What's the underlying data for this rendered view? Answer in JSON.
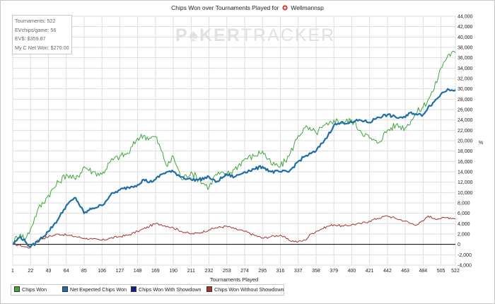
{
  "title_prefix": "Chips Won over Tournaments Played for",
  "player_name": "Wellmannsp",
  "watermark": {
    "part1": "P",
    "part2": "KER",
    "part3": "TRACKER"
  },
  "stats": {
    "tournaments": "Tournaments: 522",
    "ev_per_game": "EVchips/game: 56",
    "evs": "EV$: $359.87",
    "net_won": "My C Net Won: $270.00"
  },
  "legend": [
    {
      "label": "Chips Won",
      "color": "#3fa63f"
    },
    {
      "label": "Net Expected Chips Won",
      "color": "#1f6fa6"
    },
    {
      "label": "Chips Won With Showdown",
      "color": "#1a1a8c"
    },
    {
      "label": "Chips Won Without Showdown",
      "color": "#a83232"
    }
  ],
  "chart_data": {
    "type": "line",
    "title": "Chips Won over Tournaments Played for Wellmannsp",
    "xlabel": "Tournaments Played",
    "ylabel": "%",
    "xlim": [
      1,
      522
    ],
    "ylim": [
      -4000,
      44000
    ],
    "x_ticks": [
      1,
      22,
      43,
      64,
      85,
      106,
      127,
      148,
      169,
      190,
      211,
      232,
      253,
      274,
      295,
      316,
      337,
      358,
      379,
      400,
      421,
      442,
      463,
      484,
      505,
      522
    ],
    "y_ticks": [
      -4000,
      -2000,
      0,
      2000,
      4000,
      6000,
      8000,
      10000,
      12000,
      14000,
      16000,
      18000,
      20000,
      22000,
      24000,
      26000,
      28000,
      30000,
      32000,
      34000,
      36000,
      38000,
      40000,
      42000,
      44000
    ],
    "y_tick_labels": [
      "-4,000",
      "-2,000",
      "0",
      "2,000",
      "4,000",
      "6,000",
      "8,000",
      "10,000",
      "12,000",
      "14,000",
      "16,000",
      "18,000",
      "20,000",
      "22,000",
      "24,000",
      "26,000",
      "28,000",
      "30,000",
      "32,000",
      "34,000",
      "36,000",
      "38,000",
      "40,000",
      "42,000",
      "44,000"
    ],
    "x_tick_labels": [
      "1",
      "22",
      "43",
      "64",
      "85",
      "106",
      "127",
      "148",
      "169",
      "190",
      "211",
      "232",
      "253",
      "274",
      "295",
      "316",
      "337",
      "358",
      "379",
      "400",
      "421",
      "442",
      "463",
      "484",
      "505",
      "522"
    ],
    "series": [
      {
        "name": "Chips Won",
        "color": "#3fa63f",
        "width": 1,
        "x": [
          1,
          10,
          16,
          22,
          30,
          43,
          55,
          64,
          75,
          85,
          95,
          106,
          116,
          127,
          137,
          148,
          155,
          162,
          169,
          176,
          183,
          190,
          200,
          211,
          220,
          232,
          240,
          253,
          262,
          274,
          285,
          295,
          305,
          316,
          326,
          337,
          345,
          352,
          358,
          365,
          372,
          379,
          390,
          400,
          410,
          421,
          430,
          442,
          452,
          463,
          470,
          477,
          484,
          490,
          497,
          505,
          513,
          522
        ],
        "y": [
          500,
          2000,
          1000,
          3000,
          6500,
          9500,
          12000,
          13500,
          12500,
          15000,
          14000,
          13500,
          16000,
          17000,
          17500,
          20500,
          21000,
          20500,
          20800,
          18000,
          15000,
          17000,
          12500,
          14000,
          12500,
          11000,
          13500,
          13500,
          14500,
          16500,
          17000,
          18000,
          15500,
          15000,
          17000,
          21000,
          22500,
          22000,
          21500,
          22500,
          23000,
          24000,
          23500,
          24000,
          22000,
          20500,
          19500,
          22000,
          23000,
          22500,
          24000,
          25500,
          26500,
          28000,
          30000,
          34000,
          36500,
          37000
        ]
      },
      {
        "name": "Net Expected Chips Won",
        "color": "#1f6fa6",
        "width": 2.2,
        "x": [
          1,
          10,
          16,
          22,
          30,
          43,
          55,
          64,
          75,
          85,
          95,
          106,
          116,
          127,
          137,
          148,
          155,
          162,
          169,
          176,
          183,
          190,
          200,
          211,
          220,
          232,
          240,
          253,
          262,
          274,
          285,
          295,
          305,
          316,
          326,
          337,
          345,
          352,
          358,
          365,
          372,
          379,
          390,
          400,
          410,
          421,
          430,
          442,
          452,
          463,
          470,
          477,
          484,
          490,
          497,
          505,
          513,
          522
        ],
        "y": [
          0,
          1500,
          500,
          -500,
          500,
          2500,
          5000,
          7500,
          9000,
          6000,
          7000,
          7500,
          9500,
          10500,
          11000,
          11500,
          12500,
          12000,
          12500,
          13500,
          14000,
          14000,
          13000,
          12500,
          12500,
          13000,
          12000,
          13500,
          13000,
          14000,
          14500,
          15000,
          14000,
          14000,
          14000,
          16000,
          17000,
          17500,
          18000,
          19500,
          21000,
          23000,
          23500,
          23500,
          24000,
          23500,
          24500,
          25000,
          24500,
          24500,
          25500,
          25000,
          25000,
          26500,
          27500,
          29000,
          30000,
          29800
        ]
      },
      {
        "name": "Chips Won Without Showdown",
        "color": "#a83232",
        "width": 1,
        "x": [
          1,
          10,
          16,
          22,
          30,
          43,
          55,
          64,
          75,
          85,
          95,
          106,
          116,
          127,
          137,
          148,
          155,
          162,
          169,
          176,
          183,
          190,
          200,
          211,
          220,
          232,
          240,
          253,
          262,
          274,
          285,
          295,
          305,
          316,
          326,
          337,
          345,
          352,
          358,
          365,
          372,
          379,
          390,
          400,
          410,
          421,
          430,
          442,
          452,
          463,
          470,
          477,
          484,
          490,
          497,
          505,
          513,
          522
        ],
        "y": [
          0,
          -200,
          -500,
          -600,
          800,
          1500,
          2000,
          1800,
          1500,
          1200,
          1000,
          800,
          1200,
          1500,
          1800,
          2500,
          3000,
          3500,
          4000,
          3800,
          3500,
          3200,
          2500,
          2000,
          2200,
          2800,
          3200,
          3500,
          3000,
          2500,
          1800,
          1200,
          1500,
          1800,
          800,
          500,
          800,
          2000,
          2500,
          3000,
          3500,
          3800,
          3500,
          3800,
          4000,
          4500,
          5000,
          5500,
          5000,
          4500,
          4000,
          3800,
          4500,
          5500,
          5000,
          5000,
          5200,
          5000
        ]
      },
      {
        "name": "Chips Won With Showdown",
        "color": "#1a1a8c",
        "width": 1,
        "x": [],
        "y": []
      }
    ]
  }
}
